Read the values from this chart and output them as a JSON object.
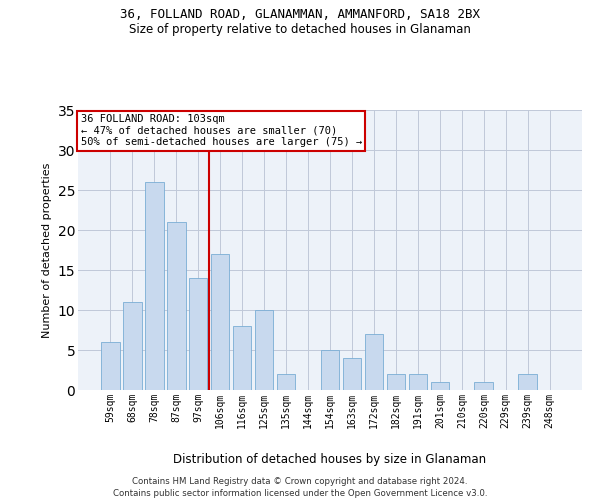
{
  "title": "36, FOLLAND ROAD, GLANAMMAN, AMMANFORD, SA18 2BX",
  "subtitle": "Size of property relative to detached houses in Glanaman",
  "xlabel": "Distribution of detached houses by size in Glanaman",
  "ylabel": "Number of detached properties",
  "categories": [
    "59sqm",
    "68sqm",
    "78sqm",
    "87sqm",
    "97sqm",
    "106sqm",
    "116sqm",
    "125sqm",
    "135sqm",
    "144sqm",
    "154sqm",
    "163sqm",
    "172sqm",
    "182sqm",
    "191sqm",
    "201sqm",
    "210sqm",
    "220sqm",
    "229sqm",
    "239sqm",
    "248sqm"
  ],
  "values": [
    6,
    11,
    26,
    21,
    14,
    17,
    8,
    10,
    2,
    0,
    5,
    4,
    7,
    2,
    2,
    1,
    0,
    1,
    0,
    2,
    0
  ],
  "bar_color": "#c8d9ee",
  "bar_edge_color": "#7aadd4",
  "grid_color": "#c0c8d8",
  "background_color": "#edf2f9",
  "property_line_x": 4.5,
  "annotation_text": "36 FOLLAND ROAD: 103sqm\n← 47% of detached houses are smaller (70)\n50% of semi-detached houses are larger (75) →",
  "annotation_box_color": "#ffffff",
  "annotation_box_edge": "#cc0000",
  "vline_color": "#cc0000",
  "footer_line1": "Contains HM Land Registry data © Crown copyright and database right 2024.",
  "footer_line2": "Contains public sector information licensed under the Open Government Licence v3.0.",
  "ylim": [
    0,
    35
  ],
  "yticks": [
    0,
    5,
    10,
    15,
    20,
    25,
    30,
    35
  ]
}
